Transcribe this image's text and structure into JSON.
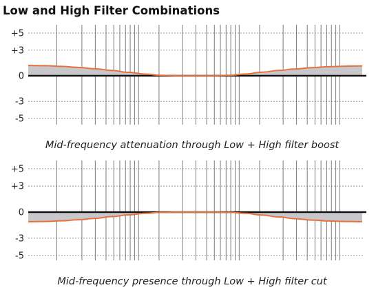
{
  "page_title": "Low and High Filter Combinations",
  "colors": {
    "curve": "#e8703a",
    "fill": "#c8c8cc",
    "grid_dotted": "#9a9a9a",
    "grid_vertical": "#7a7a7a",
    "zero_line": "#111111"
  },
  "chart_data": [
    {
      "type": "line",
      "title": "",
      "caption": "Mid-frequency attenuation through Low + High filter boost",
      "xlabel": "",
      "ylabel": "",
      "x_scale": "log",
      "y_ticks": [
        5,
        3,
        0,
        -3,
        -5
      ],
      "y_tick_labels": [
        "+5",
        "+3",
        "0",
        "-3",
        "-5"
      ],
      "ylim": [
        -5.5,
        5.5
      ],
      "fill_to_zero": true,
      "series": [
        {
          "x": [
            0,
            0.05,
            0.1,
            0.15,
            0.2,
            0.25,
            0.3,
            0.35,
            0.4,
            0.45,
            0.5,
            0.55,
            0.6,
            0.65,
            0.7,
            0.75,
            0.8,
            0.85,
            0.9,
            0.95,
            1
          ],
          "values": [
            1.2,
            1.18,
            1.1,
            0.98,
            0.82,
            0.62,
            0.4,
            0.2,
            0.05,
            0.0,
            0.0,
            0.0,
            0.05,
            0.2,
            0.42,
            0.62,
            0.8,
            0.95,
            1.06,
            1.12,
            1.15
          ]
        }
      ]
    },
    {
      "type": "line",
      "title": "",
      "caption": "Mid-frequency presence through Low + High filter cut",
      "xlabel": "",
      "ylabel": "",
      "x_scale": "log",
      "y_ticks": [
        5,
        3,
        0,
        -3,
        -5
      ],
      "y_tick_labels": [
        "+5",
        "+3",
        "0",
        "-3",
        "-5"
      ],
      "ylim": [
        -5.5,
        5.5
      ],
      "fill_to_zero": true,
      "series": [
        {
          "x": [
            0,
            0.05,
            0.1,
            0.15,
            0.2,
            0.25,
            0.3,
            0.35,
            0.4,
            0.45,
            0.5,
            0.55,
            0.6,
            0.65,
            0.7,
            0.75,
            0.8,
            0.85,
            0.9,
            0.95,
            1
          ],
          "values": [
            -1.1,
            -1.08,
            -1.0,
            -0.88,
            -0.72,
            -0.52,
            -0.32,
            -0.14,
            -0.02,
            0.0,
            0.0,
            0.0,
            -0.02,
            -0.14,
            -0.34,
            -0.56,
            -0.76,
            -0.92,
            -1.02,
            -1.08,
            -1.1
          ]
        }
      ]
    }
  ]
}
